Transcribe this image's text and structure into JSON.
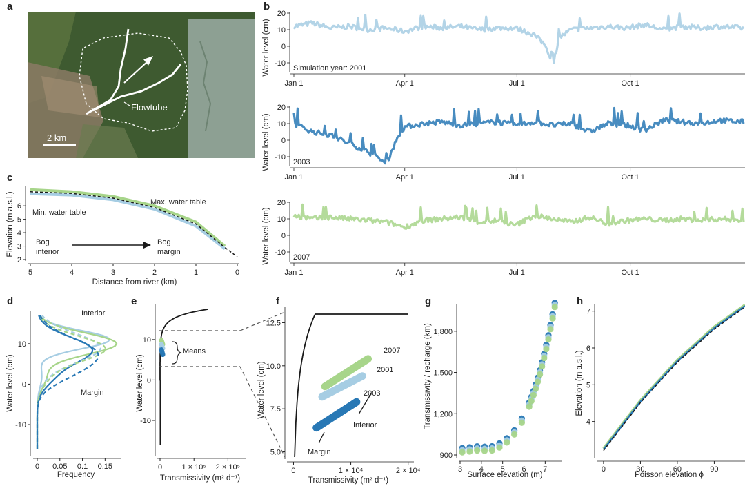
{
  "colors": {
    "y2001": "#a6cde3",
    "y2003": "#2878b5",
    "y2007": "#a7d58a",
    "dark": "#1a1a1a",
    "sat_base": "#3e5a30"
  },
  "panels": {
    "a": {
      "label": "a",
      "flowtube": "Flowtube",
      "scale": "2 km"
    },
    "b": {
      "label": "b",
      "ylabel": "Water level (cm)",
      "months": [
        "Jan 1",
        "Apr 1",
        "Jul 1",
        "Oct 1"
      ]
    },
    "c": {
      "label": "c",
      "ylabel": "Elevation (m a.s.l.)",
      "xlabel": "Distance from river (km)",
      "max_wt": "Max. water table",
      "min_wt": "Min. water table",
      "bog1": "Bog",
      "bog1b": "interior",
      "bog2": "Bog",
      "bog2b": "margin"
    },
    "d": {
      "label": "d",
      "ylabel": "Water level (cm)",
      "xlabel": "Frequency",
      "interior": "Interior",
      "margin": "Margin"
    },
    "e": {
      "label": "e",
      "ylabel": "Water level (cm)",
      "xlabel": "Transmissivity (m² d⁻¹)",
      "means": "Means"
    },
    "f": {
      "label": "f",
      "ylabel": "Water level (cm)",
      "xlabel": "Transmissivity (m² d⁻¹)",
      "y2007": "2007",
      "y2001": "2001",
      "y2003": "2003",
      "interior": "Interior",
      "margin": "Margin"
    },
    "g": {
      "label": "g",
      "ylabel": "Transmissivity / recharge (km)",
      "xlabel": "Surface elevation (m)"
    },
    "h": {
      "label": "h",
      "ylabel": "Elevation (m a.s.l.)",
      "xlabel": "Poisson elevation ϕ"
    }
  },
  "chart_data": [
    {
      "panel": "b",
      "type": "line",
      "title": "Simulation year: 2001",
      "ylabel": "Water level (cm)",
      "xlim": [
        "Jan 1",
        "Dec 31"
      ],
      "ylim": [
        -15,
        20
      ],
      "yticks": [
        -10,
        0,
        10,
        20
      ],
      "xticks": [
        "Jan 1",
        "Apr 1",
        "Jul 1",
        "Oct 1"
      ],
      "series": [
        {
          "x": [
            0,
            15,
            30,
            45,
            60,
            75,
            90,
            105,
            120,
            135,
            150,
            165,
            180,
            195,
            205,
            210,
            215,
            225,
            240,
            255,
            270,
            285,
            300,
            315,
            330,
            345,
            365
          ],
          "y": [
            12,
            14,
            11,
            12,
            10,
            11,
            9,
            12,
            11,
            12,
            10,
            11,
            11,
            7,
            0,
            -13,
            5,
            10,
            11,
            12,
            11,
            13,
            10,
            12,
            11,
            12,
            11
          ]
        }
      ]
    },
    {
      "panel": "b",
      "type": "line",
      "title": "2003",
      "ylabel": "Water level (cm)",
      "ylim": [
        -15,
        20
      ],
      "yticks": [
        -10,
        0,
        10,
        20
      ],
      "xticks": [
        "Jan 1",
        "Apr 1",
        "Jul 1",
        "Oct 1"
      ],
      "series": [
        {
          "x": [
            0,
            15,
            30,
            45,
            60,
            75,
            85,
            90,
            105,
            120,
            135,
            150,
            165,
            180,
            195,
            210,
            225,
            240,
            255,
            270,
            285,
            300,
            315,
            330,
            345,
            365
          ],
          "y": [
            10,
            5,
            3,
            -2,
            -7,
            -14,
            3,
            8,
            10,
            11,
            9,
            10,
            11,
            9,
            11,
            9,
            10,
            5,
            10,
            9,
            6,
            12,
            11,
            10,
            12,
            11
          ]
        }
      ]
    },
    {
      "panel": "b",
      "type": "line",
      "title": "2007",
      "ylabel": "Water level (cm)",
      "ylim": [
        -15,
        20
      ],
      "yticks": [
        -10,
        0,
        10,
        20
      ],
      "xticks": [
        "Jan 1",
        "Apr 1",
        "Jul 1",
        "Oct 1"
      ],
      "series": [
        {
          "x": [
            0,
            15,
            30,
            45,
            60,
            75,
            90,
            105,
            120,
            135,
            150,
            165,
            180,
            195,
            210,
            225,
            240,
            255,
            270,
            285,
            300,
            315,
            330,
            345,
            365
          ],
          "y": [
            12,
            10,
            11,
            10,
            9,
            8,
            5,
            9,
            10,
            11,
            8,
            9,
            6,
            12,
            10,
            8,
            11,
            7,
            9,
            10,
            9,
            10,
            9,
            10,
            9
          ]
        }
      ]
    },
    {
      "panel": "c",
      "type": "line",
      "xlabel": "Distance from river (km)",
      "ylabel": "Elevation (m a.s.l.)",
      "xlim": [
        5,
        0
      ],
      "ylim": [
        2,
        7.5
      ],
      "xticks": [
        5,
        4,
        3,
        2,
        1,
        0
      ],
      "yticks": [
        2,
        3,
        4,
        5,
        6
      ],
      "series": [
        {
          "name": "Max. water table",
          "x": [
            5,
            4,
            3,
            2,
            1,
            0.3
          ],
          "y": [
            7.2,
            7.05,
            6.7,
            6.0,
            4.8,
            3.0
          ]
        },
        {
          "name": "Min. water table",
          "x": [
            5,
            4,
            3,
            2,
            1,
            0.3
          ],
          "y": [
            6.9,
            6.8,
            6.45,
            5.75,
            4.5,
            2.8
          ]
        }
      ]
    },
    {
      "panel": "d",
      "type": "line",
      "xlabel": "Frequency",
      "ylabel": "Water level (cm)",
      "xticks": [
        0,
        0.05,
        0.1,
        0.15
      ],
      "yticks": [
        -10,
        0,
        10
      ],
      "xlim": [
        0,
        0.18
      ],
      "ylim": [
        -17,
        18
      ]
    },
    {
      "panel": "e",
      "type": "line",
      "xlabel": "Transmissivity (m² d⁻¹)",
      "ylabel": "Water level (cm)",
      "xticks": [
        0,
        100000,
        200000
      ],
      "xticklabels": [
        "0",
        "1 × 10⁵",
        "2 × 10⁵"
      ],
      "yticks": [
        -10,
        0,
        10
      ],
      "xlim": [
        0,
        250000
      ],
      "ylim": [
        -17,
        18
      ]
    },
    {
      "panel": "f",
      "type": "line",
      "xlabel": "Transmissivity (m² d⁻¹)",
      "ylabel": "Water level (cm)",
      "xticks": [
        0,
        10000,
        20000
      ],
      "xticklabels": [
        "0",
        "1 × 10⁴",
        "2 × 10⁴"
      ],
      "yticks": [
        5,
        7.5,
        10,
        12.5
      ],
      "yticklabels": [
        "5.0",
        "7.5",
        "10.0",
        "12.5"
      ],
      "xlim": [
        -1500,
        21000
      ],
      "ylim": [
        4.7,
        13.2
      ],
      "series": [
        {
          "name": "2007",
          "x": [
            5500,
            13000
          ],
          "y": [
            8.8,
            10.4
          ]
        },
        {
          "name": "2001",
          "x": [
            5000,
            12000
          ],
          "y": [
            8.2,
            9.4
          ]
        },
        {
          "name": "2003",
          "x": [
            4000,
            11000
          ],
          "y": [
            6.4,
            7.9
          ]
        }
      ]
    },
    {
      "panel": "g",
      "type": "scatter",
      "xlabel": "Surface elevation (m)",
      "ylabel": "Transmissivity / recharge (km)",
      "xticks": [
        3,
        4,
        5,
        6,
        7
      ],
      "yticks": [
        900,
        1200,
        1500,
        1800
      ],
      "yticklabels": [
        "900",
        "1,200",
        "1,500",
        "1,800"
      ],
      "xlim": [
        3,
        7.8
      ],
      "ylim": [
        880,
        2000
      ]
    },
    {
      "panel": "h",
      "type": "line",
      "xlabel": "Poisson elevation ϕ",
      "ylabel": "Elevation (m a.s.l.)",
      "xticks": [
        0,
        30,
        60,
        90
      ],
      "yticks": [
        4,
        5,
        6,
        7
      ],
      "xlim": [
        -5,
        115
      ],
      "ylim": [
        3,
        7.2
      ],
      "series": [
        {
          "x": [
            0,
            30,
            60,
            90,
            115
          ],
          "y": [
            3.25,
            4.55,
            5.65,
            6.55,
            7.15
          ]
        }
      ]
    }
  ]
}
